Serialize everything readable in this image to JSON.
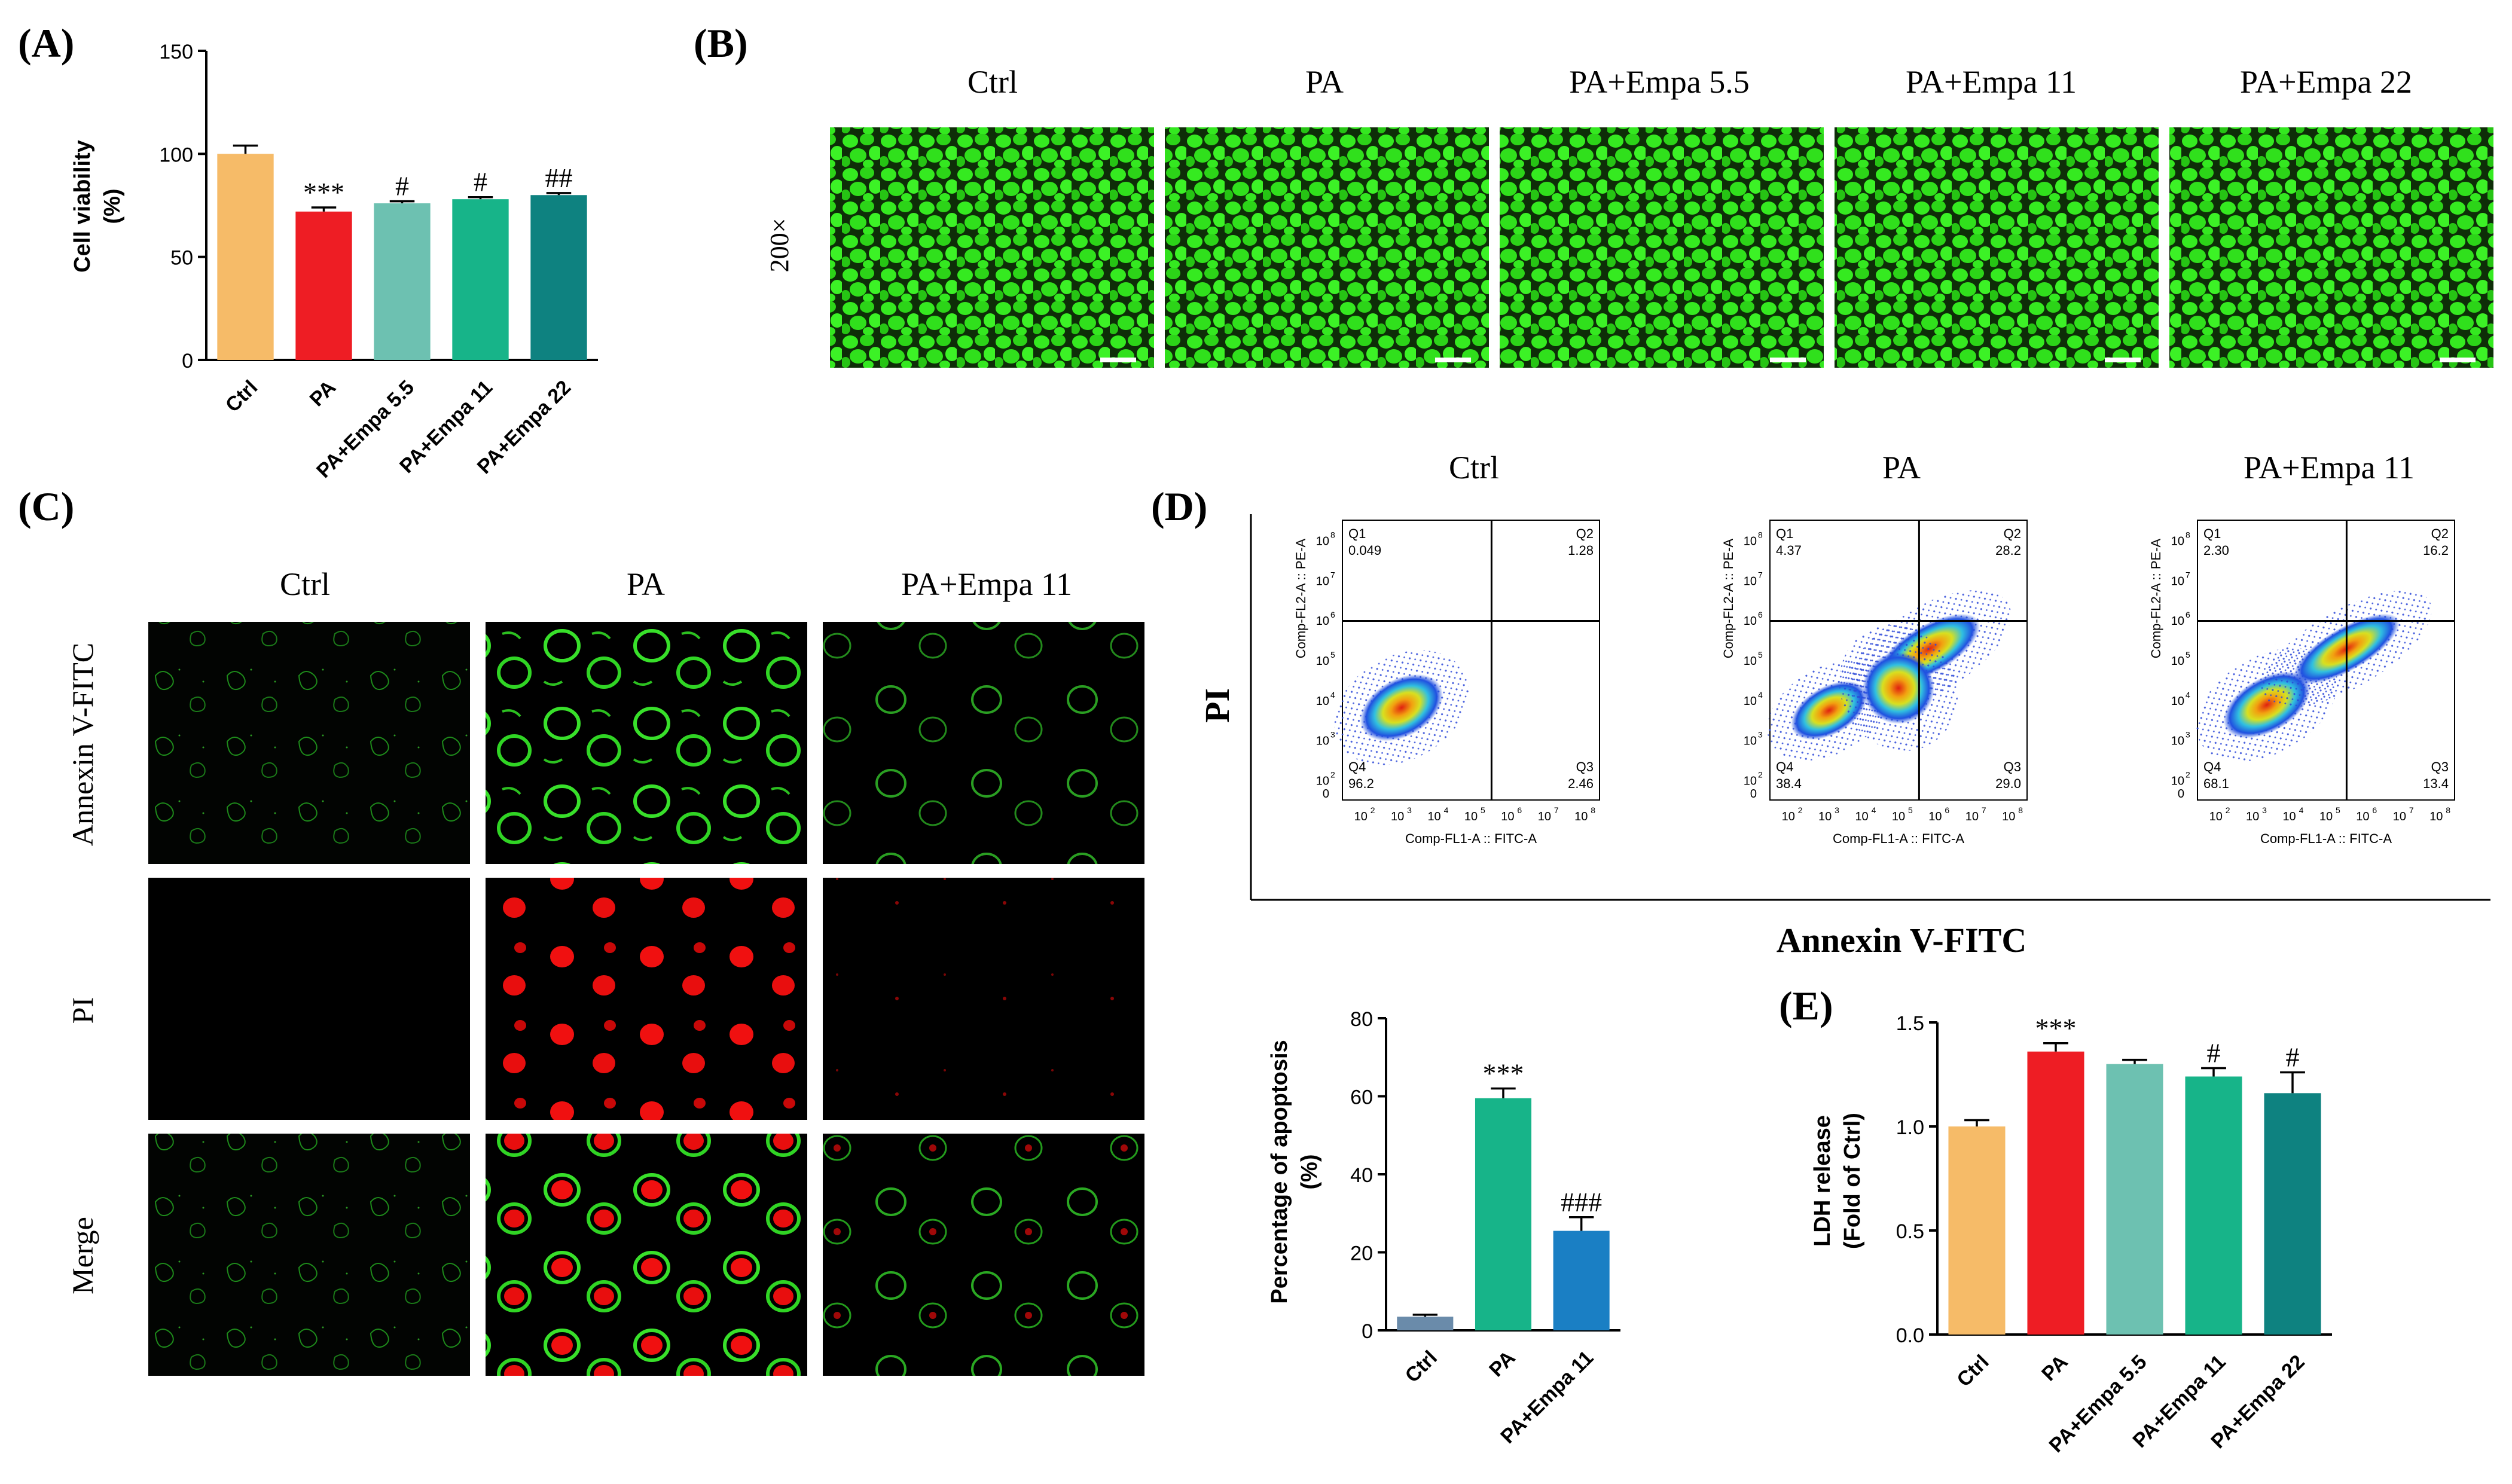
{
  "panel_labels": {
    "a": "(A)",
    "b": "(B)",
    "c": "(C)",
    "d": "(D)",
    "e": "(E)"
  },
  "chart_data": [
    {
      "id": "A",
      "type": "bar",
      "categories": [
        "Ctrl",
        "PA",
        "PA+Empa 5.5",
        "PA+Empa 11",
        "PA+Empa 22"
      ],
      "values": [
        100,
        72,
        76,
        78,
        80
      ],
      "errors": [
        4,
        2,
        1,
        1,
        1
      ],
      "annotations": [
        "",
        "***",
        "#",
        "#",
        "##"
      ],
      "colors": [
        "#F6BB68",
        "#EE1D24",
        "#6DC1B1",
        "#17B489",
        "#0E8280"
      ],
      "ylabel": "Cell viability",
      "ylabel_unit": "(%)",
      "ylim": [
        0,
        150
      ],
      "yticks": [
        "0",
        "50",
        "100",
        "150"
      ]
    },
    {
      "id": "D",
      "type": "bar",
      "categories": [
        "Ctrl",
        "PA",
        "PA+Empa 11"
      ],
      "values": [
        3.5,
        59.5,
        25.5
      ],
      "errors": [
        0.5,
        2.5,
        3.5
      ],
      "annotations": [
        "",
        "***",
        "###"
      ],
      "colors": [
        "#6A8BAA",
        "#17B489",
        "#1A7FC4"
      ],
      "ylabel": "Percentage of apoptosis",
      "ylabel_unit": "(%)",
      "ylim": [
        0,
        80
      ],
      "yticks": [
        "0",
        "20",
        "40",
        "60",
        "80"
      ]
    },
    {
      "id": "E",
      "type": "bar",
      "categories": [
        "Ctrl",
        "PA",
        "PA+Empa 5.5",
        "PA+Empa 11",
        "PA+Empa 22"
      ],
      "values": [
        1.0,
        1.36,
        1.3,
        1.24,
        1.16
      ],
      "errors": [
        0.03,
        0.04,
        0.02,
        0.04,
        0.1
      ],
      "annotations": [
        "",
        "***",
        "",
        "#",
        "#"
      ],
      "colors": [
        "#F6BB68",
        "#EE1D24",
        "#6DC1B1",
        "#17B489",
        "#0E8280"
      ],
      "ylabel": "LDH release",
      "ylabel_unit": "(Fold of Ctrl)",
      "ylim": [
        0,
        1.5
      ],
      "yticks": [
        "0.0",
        "0.5",
        "1.0",
        "1.5"
      ]
    }
  ],
  "panel_b": {
    "titles": [
      "Ctrl",
      "PA",
      "PA+Empa 5.5",
      "PA+Empa 11",
      "PA+Empa 22"
    ],
    "magnification": "200×",
    "image_color": "#2FE61C"
  },
  "panel_c": {
    "columns": [
      "Ctrl",
      "PA",
      "PA+Empa 11"
    ],
    "rows": [
      "Annexin V-FITC",
      "PI",
      "Merge"
    ]
  },
  "flow": {
    "titles": [
      "Ctrl",
      "PA",
      "PA+Empa 11"
    ],
    "y_title": "PI",
    "x_title": "Annexin V-FITC",
    "plots": [
      {
        "q1": "0.049",
        "q2": "1.28",
        "q3": "2.46",
        "q4": "96.2"
      },
      {
        "q1": "4.37",
        "q2": "28.2",
        "q3": "29.0",
        "q4": "38.4"
      },
      {
        "q1": "2.30",
        "q2": "16.2",
        "q3": "13.4",
        "q4": "68.1"
      }
    ],
    "quadrant_names": {
      "q1": "Q1",
      "q2": "Q2",
      "q3": "Q3",
      "q4": "Q4"
    },
    "axis_x": "Comp-FL1-A :: FITC-A",
    "axis_y": "Comp-FL2-A :: PE-A",
    "tick_base": "10",
    "tick_exps": [
      "2",
      "3",
      "4",
      "5",
      "6",
      "7",
      "8"
    ],
    "tick_zero": "0"
  }
}
